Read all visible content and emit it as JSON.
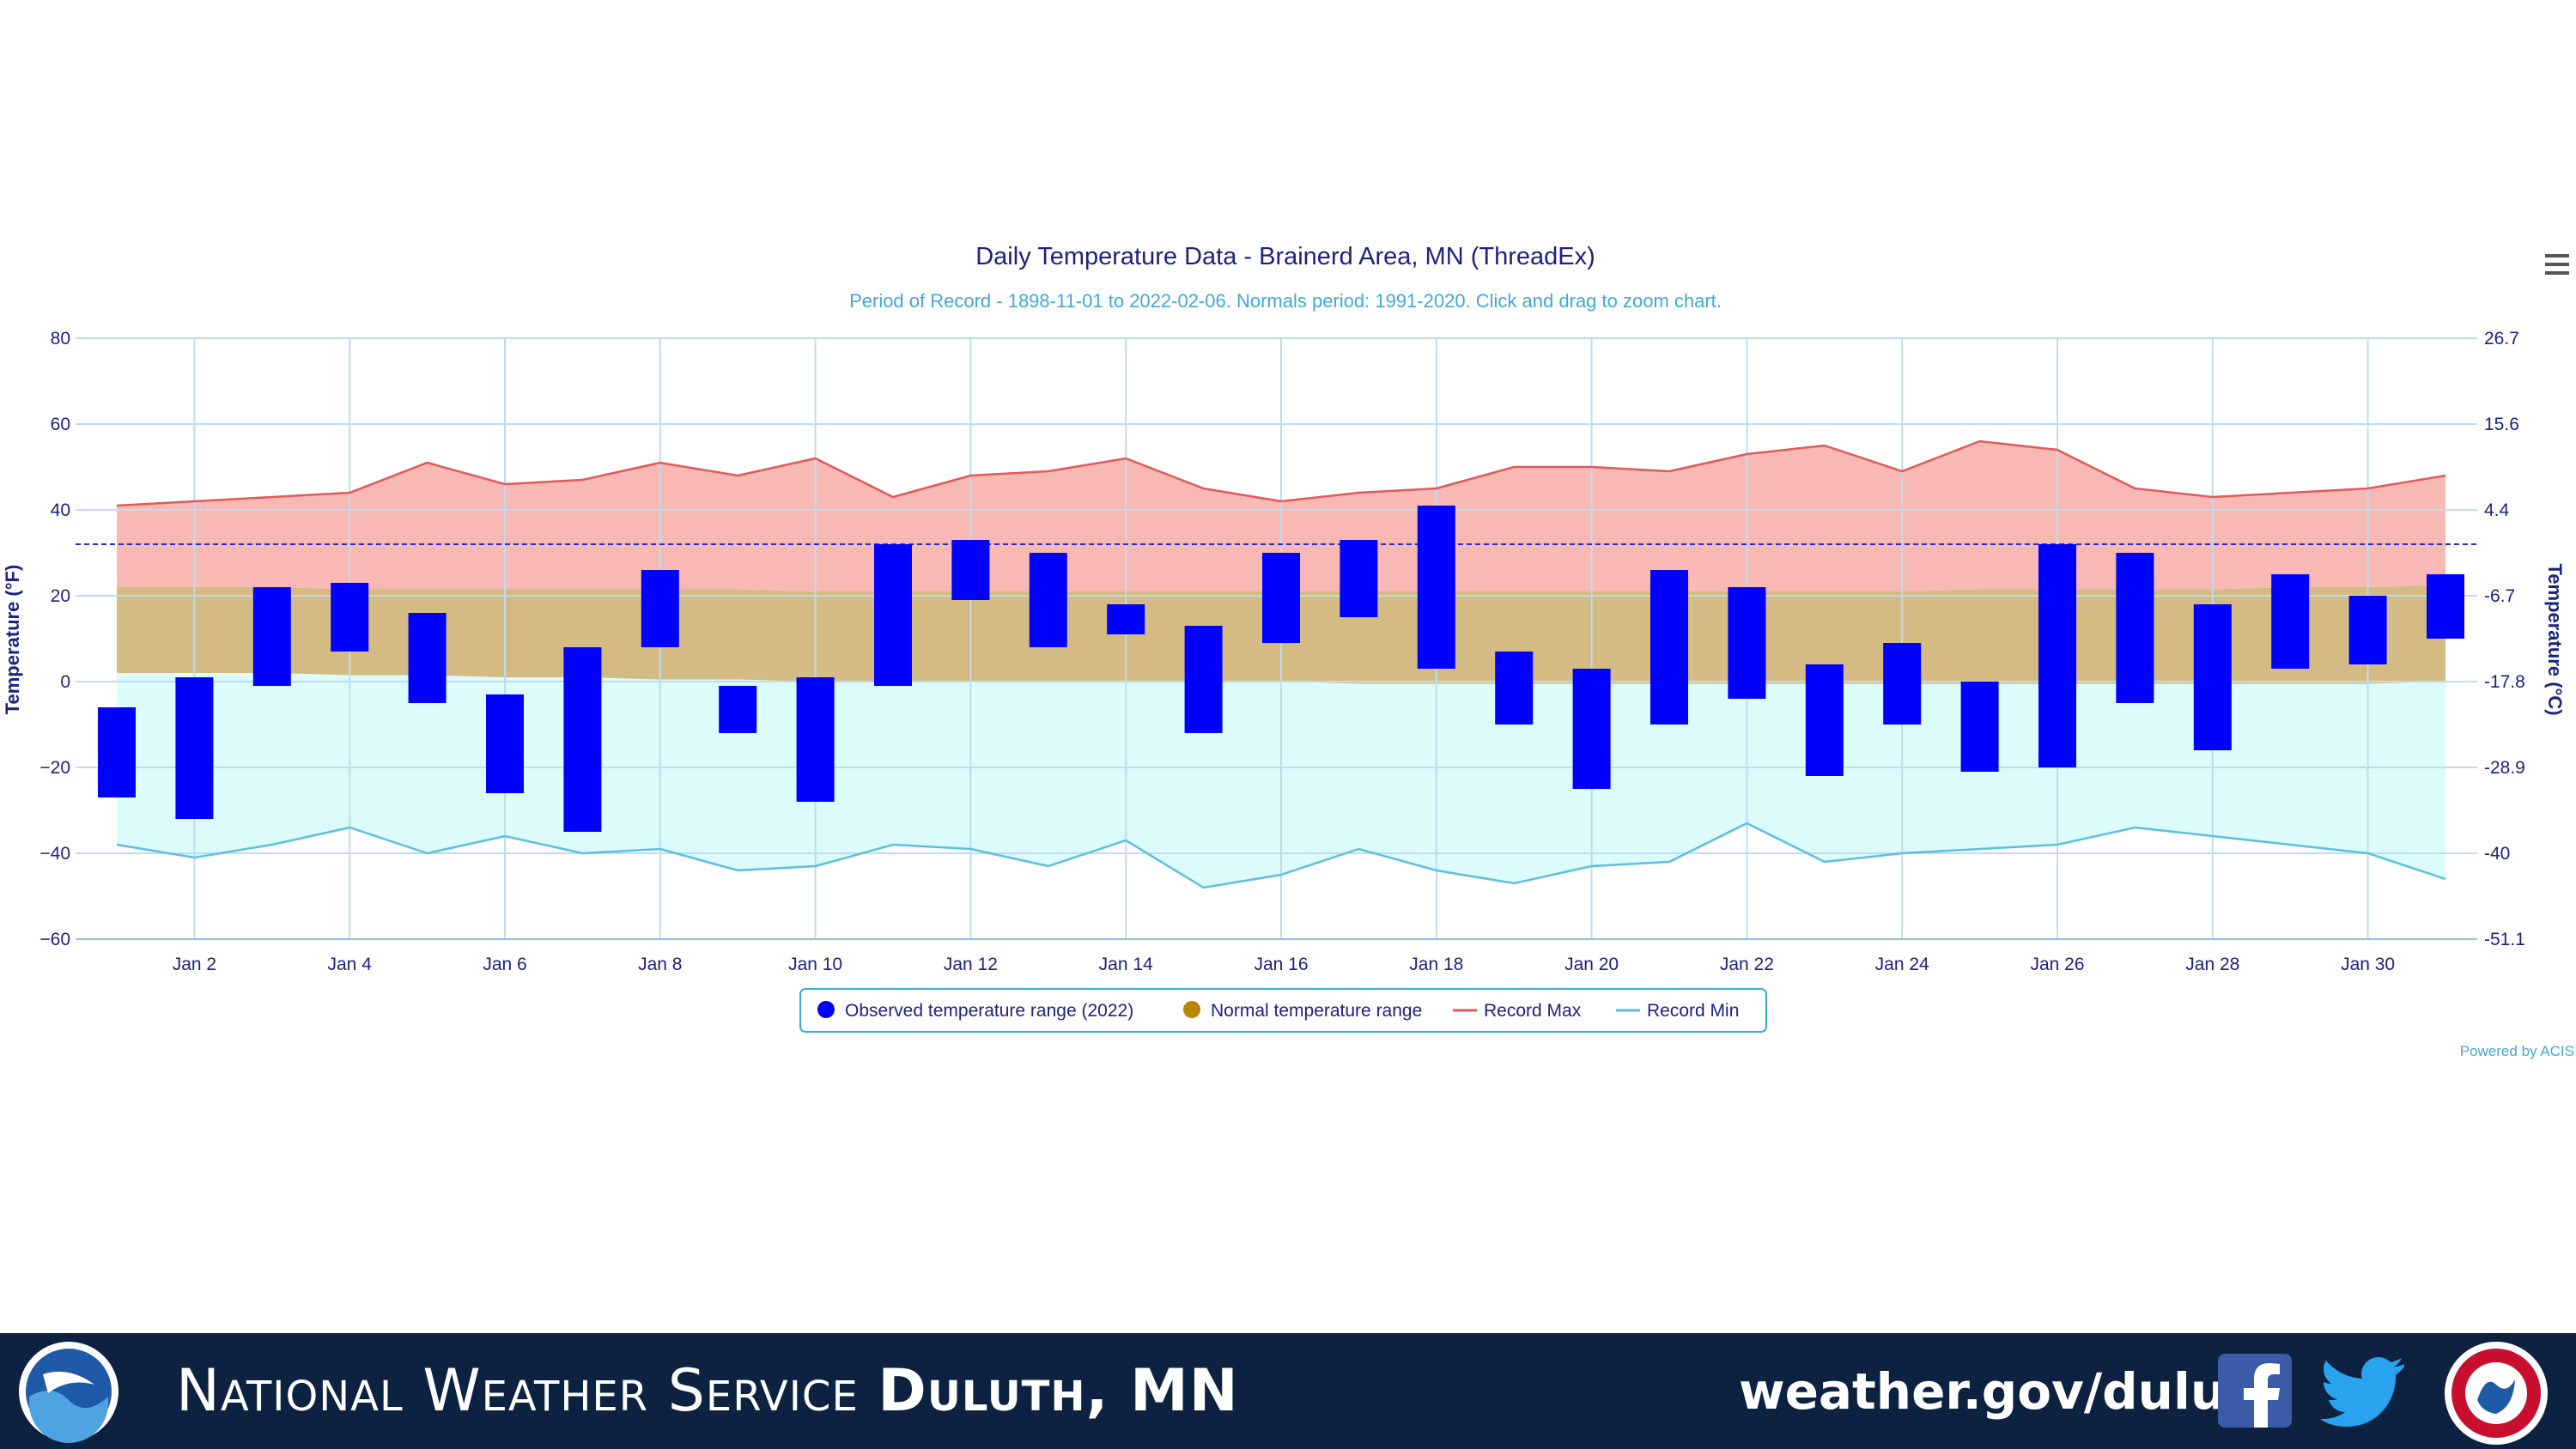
{
  "chart_data": {
    "type": "bar",
    "title": "Daily Temperature Data - Brainerd Area, MN (ThreadEx)",
    "subtitle": "Period of Record - 1898-11-01 to 2022-02-06. Normals period: 1991-2020. Click and drag to zoom chart.",
    "ylabel": "Temperature (°F)",
    "ylabel_right": "Temperature (°C)",
    "ylim": [
      -60,
      80
    ],
    "y_ticks": [
      "80",
      "60",
      "40",
      "20",
      "0",
      "−20",
      "−40",
      "−60"
    ],
    "y_ticks_right": [
      "26.7",
      "15.6",
      "4.4",
      "-6.7",
      "-17.8",
      "-28.9",
      "-40",
      "-51.1"
    ],
    "x_ticks": [
      "Jan 2",
      "Jan 4",
      "Jan 6",
      "Jan 8",
      "Jan 10",
      "Jan 12",
      "Jan 14",
      "Jan 16",
      "Jan 18",
      "Jan 20",
      "Jan 22",
      "Jan 24",
      "Jan 26",
      "Jan 28",
      "Jan 30"
    ],
    "x": [
      1,
      2,
      3,
      4,
      5,
      6,
      7,
      8,
      9,
      10,
      11,
      12,
      13,
      14,
      15,
      16,
      17,
      18,
      19,
      20,
      21,
      22,
      23,
      24,
      25,
      26,
      27,
      28,
      29,
      30,
      31
    ],
    "freezing_line": 32,
    "series": [
      {
        "name": "Observed temperature range (2022)",
        "color": "#0000ff",
        "low": [
          -27,
          -32,
          -1,
          7,
          -5,
          -26,
          -35,
          8,
          -12,
          -28,
          -1,
          19,
          8,
          11,
          -12,
          9,
          15,
          3,
          -10,
          -25,
          -10,
          -4,
          -22,
          -10,
          -21,
          -20,
          -5,
          -16,
          3,
          4,
          10
        ],
        "high": [
          -6,
          1,
          22,
          23,
          16,
          -3,
          8,
          26,
          -1,
          1,
          32,
          33,
          30,
          18,
          13,
          30,
          33,
          41,
          7,
          3,
          26,
          22,
          4,
          9,
          0,
          32,
          30,
          18,
          25,
          20,
          25
        ]
      },
      {
        "name": "Normal temperature range",
        "color": "#b8860b",
        "low": [
          2,
          2,
          2,
          1.5,
          1.5,
          1,
          1,
          0.5,
          0.5,
          0,
          0,
          0,
          0,
          0,
          0,
          0,
          -0.5,
          -0.5,
          -0.5,
          -0.5,
          -0.5,
          -0.5,
          -0.5,
          -0.5,
          -0.5,
          -0.5,
          -0.5,
          -0.5,
          -0.5,
          -0.5,
          0
        ],
        "high": [
          22,
          22,
          22,
          21.5,
          21.5,
          21.5,
          21.5,
          21.5,
          21.5,
          21,
          21,
          21,
          21,
          21,
          21,
          21,
          21,
          21,
          21,
          21,
          21,
          21,
          21,
          21,
          21.5,
          21.5,
          21.5,
          21.5,
          22,
          22,
          22.5
        ]
      },
      {
        "name": "Record Max",
        "color": "#e05a5a",
        "values": [
          41,
          42,
          43,
          44,
          51,
          46,
          47,
          51,
          48,
          52,
          43,
          48,
          49,
          52,
          45,
          42,
          44,
          45,
          50,
          50,
          49,
          53,
          55,
          49,
          56,
          54,
          45,
          43,
          44,
          45,
          48
        ]
      },
      {
        "name": "Record Min",
        "color": "#5bc0de",
        "values": [
          -38,
          -41,
          -38,
          -34,
          -40,
          -36,
          -40,
          -39,
          -44,
          -43,
          -38,
          -39,
          -43,
          -37,
          -48,
          -45,
          -39,
          -44,
          -47,
          -43,
          -42,
          -33,
          -42,
          -40,
          -39,
          -38,
          -34,
          -36,
          -38,
          -40,
          -46
        ]
      }
    ],
    "legend_position": "bottom-center",
    "grid": true,
    "credit": "Powered by ACIS"
  },
  "footer": {
    "org_name": "National Weather Service",
    "office": "Duluth, MN",
    "url": "weather.gov/duluth"
  },
  "colors": {
    "title": "#1a237e",
    "subtitle": "#3fa9d6",
    "footer_bg": "#0d2240",
    "record_max_fill": "#f8b9b5",
    "record_min_fill": "#dcfbfb",
    "normal_fill": "#d4bb83"
  },
  "icons": {
    "menu": "hamburger-menu-icon",
    "noaa": "noaa-logo",
    "facebook": "facebook-icon",
    "twitter": "twitter-icon",
    "nws": "nws-logo"
  }
}
